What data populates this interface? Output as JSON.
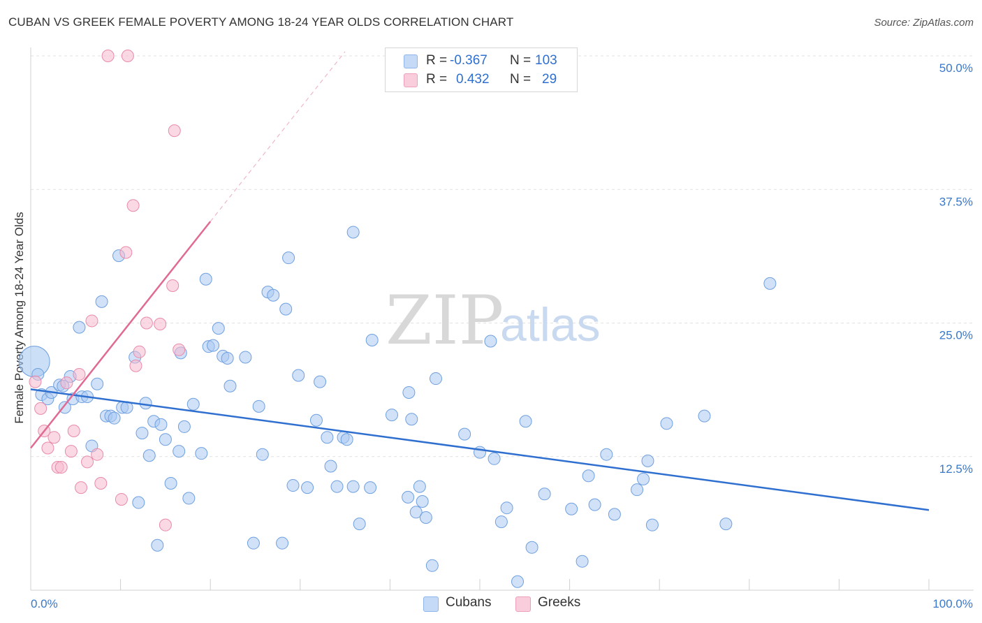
{
  "header": {
    "title": "CUBAN VS GREEK FEMALE POVERTY AMONG 18-24 YEAR OLDS CORRELATION CHART",
    "source": "Source: ZipAtlas.com"
  },
  "watermark": {
    "zip": "ZIP",
    "atlas": "atlas"
  },
  "legend": {
    "rows": [
      {
        "r_label": "R =",
        "r_value": "-0.367",
        "n_label": "N =",
        "n_value": "103",
        "color": "#a9c9f2"
      },
      {
        "r_label": "R =",
        "r_value": "0.432",
        "n_label": "N =",
        "n_value": "29",
        "color": "#f6b9cd"
      }
    ]
  },
  "bottom_legend": [
    {
      "label": "Cubans",
      "color": "#a9c9f2"
    },
    {
      "label": "Greeks",
      "color": "#f6b9cd"
    }
  ],
  "chart_data": {
    "type": "scatter",
    "title": "CUBAN VS GREEK FEMALE POVERTY AMONG 18-24 YEAR OLDS CORRELATION CHART",
    "ylabel": "Female Poverty Among 18-24 Year Olds",
    "xlabel": "",
    "xlim": [
      0,
      100
    ],
    "ylim": [
      0,
      50
    ],
    "x_tick_labels": [
      "0.0%",
      "100.0%"
    ],
    "y_ticks": [
      12.5,
      25.0,
      37.5,
      50.0
    ],
    "y_tick_labels": [
      "12.5%",
      "25.0%",
      "37.5%",
      "50.0%"
    ],
    "grid": true,
    "legend_position": "top-center",
    "colors": {
      "cubans_fill": "#a9c9f2",
      "cubans_stroke": "#6fa0df",
      "cubans_line": "#2f6fcf",
      "greeks_fill": "#f6b9cd",
      "greeks_stroke": "#e98aab",
      "greeks_line": "#e06a94"
    },
    "series": [
      {
        "name": "Cubans",
        "points": [
          [
            0.4,
            21.4
          ],
          [
            0.8,
            20.2
          ],
          [
            1.2,
            18.3
          ],
          [
            1.9,
            17.9
          ],
          [
            2.3,
            18.5
          ],
          [
            3.2,
            19.2
          ],
          [
            3.6,
            19.1
          ],
          [
            3.8,
            17.1
          ],
          [
            4.4,
            20.0
          ],
          [
            4.7,
            17.9
          ],
          [
            5.4,
            24.6
          ],
          [
            5.7,
            18.1
          ],
          [
            6.3,
            18.1
          ],
          [
            6.8,
            13.5
          ],
          [
            7.4,
            19.3
          ],
          [
            7.9,
            27.0
          ],
          [
            8.4,
            16.3
          ],
          [
            8.9,
            16.3
          ],
          [
            9.3,
            16.1
          ],
          [
            9.8,
            31.3
          ],
          [
            10.2,
            17.1
          ],
          [
            10.7,
            17.1
          ],
          [
            11.6,
            21.8
          ],
          [
            12.0,
            8.2
          ],
          [
            12.4,
            14.7
          ],
          [
            12.8,
            17.5
          ],
          [
            13.2,
            12.6
          ],
          [
            13.7,
            15.8
          ],
          [
            14.1,
            4.2
          ],
          [
            14.5,
            15.5
          ],
          [
            15.0,
            14.1
          ],
          [
            15.6,
            10.0
          ],
          [
            16.5,
            13.0
          ],
          [
            16.7,
            22.2
          ],
          [
            17.1,
            15.3
          ],
          [
            17.6,
            8.6
          ],
          [
            18.1,
            17.4
          ],
          [
            19.0,
            12.8
          ],
          [
            19.5,
            29.1
          ],
          [
            19.8,
            22.8
          ],
          [
            20.3,
            22.9
          ],
          [
            20.9,
            24.5
          ],
          [
            21.4,
            21.9
          ],
          [
            21.9,
            21.7
          ],
          [
            22.2,
            19.1
          ],
          [
            23.9,
            21.8
          ],
          [
            24.8,
            4.4
          ],
          [
            25.4,
            17.2
          ],
          [
            25.8,
            12.7
          ],
          [
            26.4,
            27.9
          ],
          [
            27.0,
            27.6
          ],
          [
            28.0,
            4.4
          ],
          [
            28.4,
            26.3
          ],
          [
            28.7,
            31.1
          ],
          [
            29.2,
            9.8
          ],
          [
            29.8,
            20.1
          ],
          [
            30.8,
            9.6
          ],
          [
            31.8,
            15.9
          ],
          [
            32.2,
            19.5
          ],
          [
            33.0,
            14.3
          ],
          [
            33.4,
            11.6
          ],
          [
            34.1,
            9.7
          ],
          [
            34.8,
            14.3
          ],
          [
            35.2,
            14.1
          ],
          [
            35.9,
            9.7
          ],
          [
            35.9,
            33.5
          ],
          [
            36.6,
            6.2
          ],
          [
            37.8,
            9.6
          ],
          [
            38.0,
            23.4
          ],
          [
            40.2,
            16.4
          ],
          [
            42.0,
            8.7
          ],
          [
            42.1,
            18.5
          ],
          [
            42.4,
            16.0
          ],
          [
            42.9,
            7.3
          ],
          [
            43.3,
            9.7
          ],
          [
            43.6,
            8.3
          ],
          [
            44.0,
            6.8
          ],
          [
            44.7,
            2.3
          ],
          [
            45.1,
            19.8
          ],
          [
            48.3,
            14.6
          ],
          [
            50.0,
            12.9
          ],
          [
            51.2,
            23.3
          ],
          [
            51.6,
            12.3
          ],
          [
            52.4,
            6.4
          ],
          [
            53.0,
            7.7
          ],
          [
            54.2,
            0.8
          ],
          [
            55.1,
            15.8
          ],
          [
            55.8,
            4.0
          ],
          [
            57.2,
            9.0
          ],
          [
            60.2,
            7.6
          ],
          [
            61.4,
            2.7
          ],
          [
            62.1,
            10.7
          ],
          [
            62.8,
            8.0
          ],
          [
            64.1,
            12.7
          ],
          [
            65.0,
            7.1
          ],
          [
            67.5,
            9.4
          ],
          [
            68.2,
            10.4
          ],
          [
            68.7,
            12.1
          ],
          [
            69.2,
            6.1
          ],
          [
            70.8,
            15.6
          ],
          [
            75.0,
            16.3
          ],
          [
            77.4,
            6.2
          ],
          [
            82.3,
            28.7
          ]
        ],
        "trend": {
          "x": [
            0,
            100
          ],
          "y": [
            18.8,
            7.5
          ]
        }
      },
      {
        "name": "Greeks",
        "points": [
          [
            0.5,
            19.5
          ],
          [
            1.1,
            17.0
          ],
          [
            1.5,
            14.9
          ],
          [
            1.9,
            13.3
          ],
          [
            2.6,
            14.3
          ],
          [
            3.0,
            11.5
          ],
          [
            3.4,
            11.5
          ],
          [
            4.0,
            19.4
          ],
          [
            4.5,
            13.0
          ],
          [
            4.8,
            14.9
          ],
          [
            5.4,
            20.2
          ],
          [
            5.6,
            9.6
          ],
          [
            6.3,
            12.0
          ],
          [
            6.8,
            25.2
          ],
          [
            7.4,
            12.7
          ],
          [
            7.8,
            10.0
          ],
          [
            8.6,
            50.0
          ],
          [
            10.1,
            8.5
          ],
          [
            10.6,
            31.6
          ],
          [
            10.8,
            50.0
          ],
          [
            11.4,
            36.0
          ],
          [
            11.7,
            21.0
          ],
          [
            12.1,
            22.3
          ],
          [
            12.9,
            25.0
          ],
          [
            14.4,
            24.9
          ],
          [
            15.0,
            6.1
          ],
          [
            15.8,
            28.5
          ],
          [
            16.0,
            43.0
          ],
          [
            16.5,
            22.5
          ]
        ],
        "trend": {
          "x": [
            0,
            20
          ],
          "y": [
            13.3,
            34.5
          ]
        },
        "trend_extended": {
          "x": [
            20,
            35
          ],
          "y": [
            34.5,
            50.4
          ]
        }
      }
    ]
  }
}
